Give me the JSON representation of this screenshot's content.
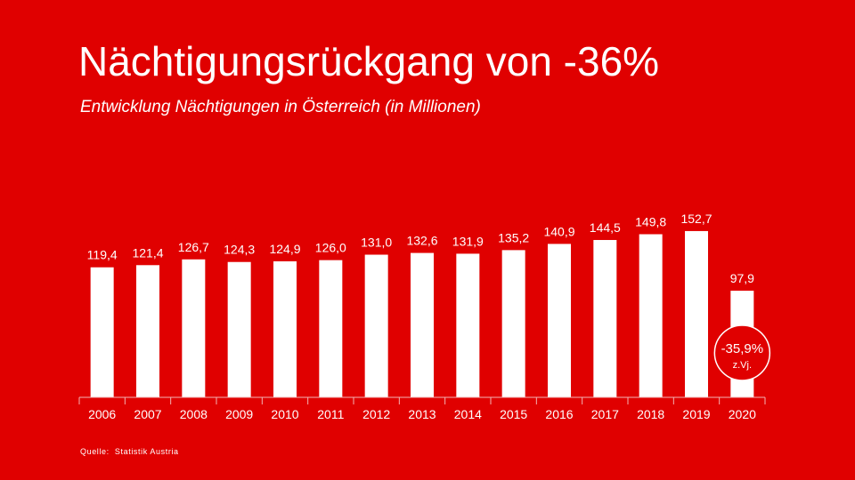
{
  "slide": {
    "title": "Nächtigungsrückgang von -36%",
    "subtitle": "Entwicklung Nächtigungen in Österreich (in Millionen)",
    "source_label": "Quelle:",
    "source_value": "Statistik Austria"
  },
  "colors": {
    "background": "#e00000",
    "bar": "#ffffff",
    "text": "#ffffff"
  },
  "chart_data": {
    "type": "bar",
    "categories": [
      "2006",
      "2007",
      "2008",
      "2009",
      "2010",
      "2011",
      "2012",
      "2013",
      "2014",
      "2015",
      "2016",
      "2017",
      "2018",
      "2019",
      "2020"
    ],
    "values": [
      119.4,
      121.4,
      126.7,
      124.3,
      124.9,
      126.0,
      131.0,
      132.6,
      131.9,
      135.2,
      140.9,
      144.5,
      149.8,
      152.7,
      97.9
    ],
    "value_labels": [
      "119,4",
      "121,4",
      "126,7",
      "124,3",
      "124,9",
      "126,0",
      "131,0",
      "132,6",
      "131,9",
      "135,2",
      "140,9",
      "144,5",
      "149,8",
      "152,7",
      "97,9"
    ],
    "title": "Entwicklung Nächtigungen in Österreich (in Millionen)",
    "ylim": [
      0,
      180
    ],
    "grid": false,
    "annotation": {
      "category": "2020",
      "value_text": "-35,9%",
      "sub_text": "z.Vj."
    }
  }
}
